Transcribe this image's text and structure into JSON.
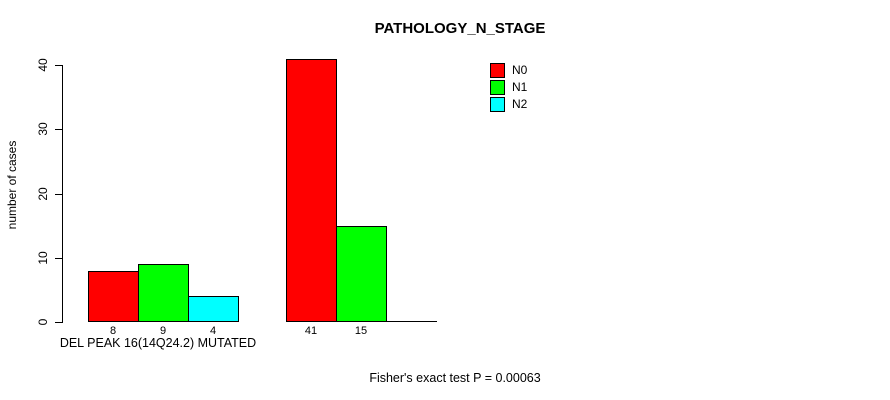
{
  "chart_data": {
    "type": "bar",
    "title": "PATHOLOGY_N_STAGE",
    "ylabel": "number of cases",
    "xlabel": "DEL PEAK 16(14Q24.2) MUTATED",
    "annotation": "Fisher's exact test P = 0.00063",
    "ylim": [
      0,
      40
    ],
    "yticks": [
      0,
      10,
      20,
      30,
      40
    ],
    "grid": false,
    "legend_position": "top-right",
    "series": [
      {
        "name": "N0",
        "color": "#FF0000"
      },
      {
        "name": "N1",
        "color": "#00FF00"
      },
      {
        "name": "N2",
        "color": "#00FFFF"
      }
    ],
    "groups": [
      {
        "name": "MUTATED",
        "values": [
          8,
          9,
          4
        ],
        "bar_labels": [
          "8",
          "9",
          "4"
        ]
      },
      {
        "name": "",
        "values": [
          41,
          15,
          0
        ],
        "bar_labels": [
          "41",
          "15",
          ""
        ]
      }
    ],
    "colors": {
      "axis": "#000000",
      "background": "#FFFFFF",
      "text": "#000000"
    }
  }
}
